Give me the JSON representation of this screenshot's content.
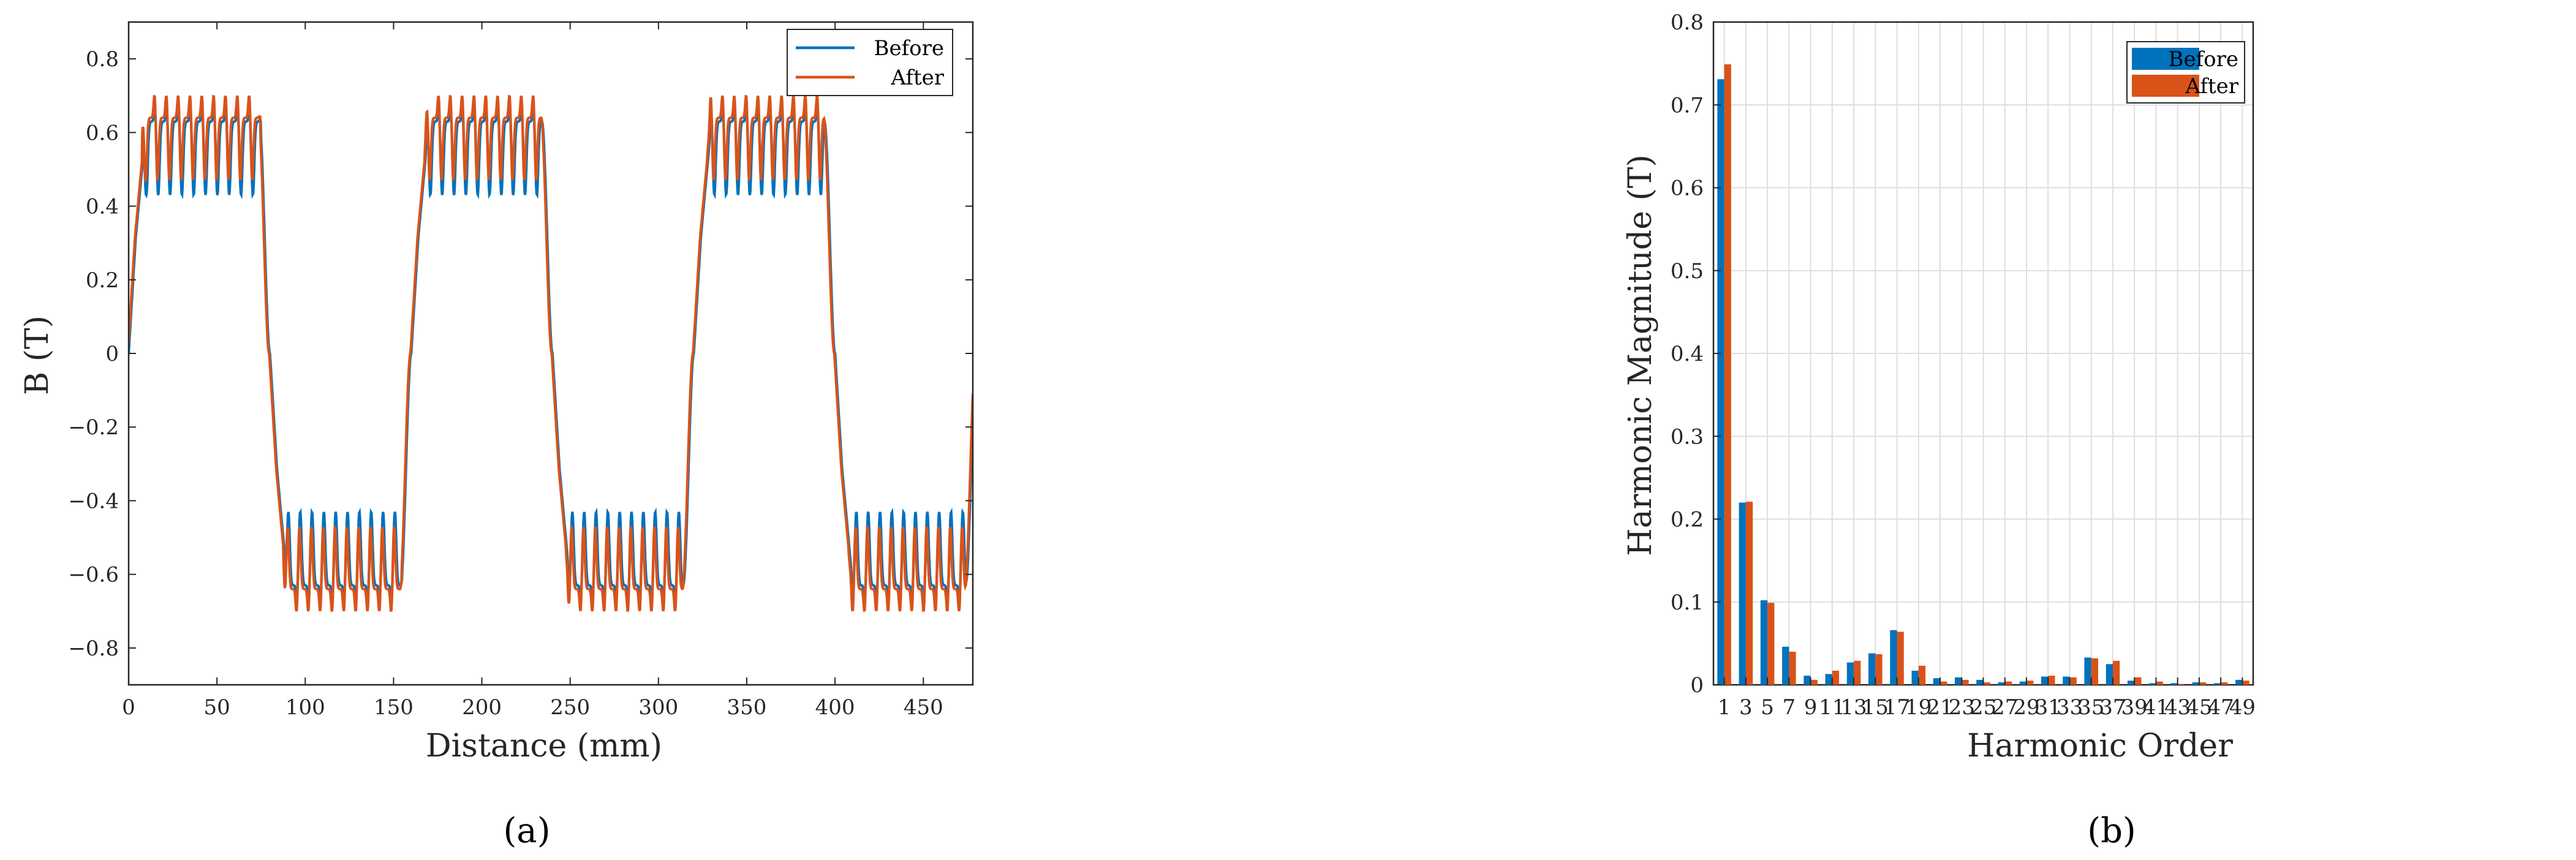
{
  "colors": {
    "before": "#0072BD",
    "after": "#D95319"
  },
  "panels": {
    "a_label": "(a)",
    "b_label": "(b)"
  },
  "chart_data": [
    {
      "type": "line",
      "xlabel": "Distance (mm)",
      "ylabel": "B (T)",
      "xlim": [
        0,
        478
      ],
      "ylim": [
        -0.9,
        0.9
      ],
      "xticks": [
        0,
        50,
        100,
        150,
        200,
        250,
        300,
        350,
        400,
        450
      ],
      "yticks": [
        -0.8,
        -0.6,
        -0.4,
        -0.2,
        0,
        0.2,
        0.4,
        0.6,
        0.8
      ],
      "ytick_labels": [
        "−0.8",
        "−0.6",
        "−0.4",
        "−0.2",
        "0",
        "0.2",
        "0.4",
        "0.6",
        "0.8"
      ],
      "grid": false,
      "legend_position": "top-right",
      "waveform": {
        "half_period_mm": 80,
        "plateau_B": 0.63,
        "slot_pitch_mm": 6.7,
        "slot_dip_before": 0.2,
        "slot_peak_after": 0.07
      },
      "series": [
        {
          "name": "Before"
        },
        {
          "name": "After"
        }
      ]
    },
    {
      "type": "bar",
      "xlabel": "Harmonic Order",
      "ylabel": "Harmonic Magnitude (T)",
      "ylim": [
        0,
        0.8
      ],
      "yticks": [
        0,
        0.1,
        0.2,
        0.3,
        0.4,
        0.5,
        0.6,
        0.7,
        0.8
      ],
      "ytick_labels": [
        "0",
        "0.1",
        "0.2",
        "0.3",
        "0.4",
        "0.5",
        "0.6",
        "0.7",
        "0.8"
      ],
      "grid": true,
      "legend_position": "top-right",
      "categories": [
        "1",
        "3",
        "5",
        "7",
        "9",
        "11",
        "13",
        "15",
        "17",
        "19",
        "21",
        "23",
        "25",
        "27",
        "29",
        "31",
        "33",
        "35",
        "37",
        "39",
        "41",
        "43",
        "45",
        "47",
        "49"
      ],
      "series": [
        {
          "name": "Before",
          "values": [
            0.731,
            0.22,
            0.102,
            0.046,
            0.011,
            0.013,
            0.027,
            0.038,
            0.066,
            0.017,
            0.008,
            0.009,
            0.006,
            0.003,
            0.004,
            0.01,
            0.01,
            0.033,
            0.025,
            0.005,
            0.002,
            0.002,
            0.003,
            0.002,
            0.006
          ]
        },
        {
          "name": "After",
          "values": [
            0.749,
            0.221,
            0.099,
            0.04,
            0.006,
            0.017,
            0.029,
            0.037,
            0.064,
            0.023,
            0.004,
            0.006,
            0.003,
            0.004,
            0.005,
            0.011,
            0.009,
            0.032,
            0.029,
            0.009,
            0.004,
            0.001,
            0.003,
            0.003,
            0.005
          ]
        }
      ]
    }
  ]
}
